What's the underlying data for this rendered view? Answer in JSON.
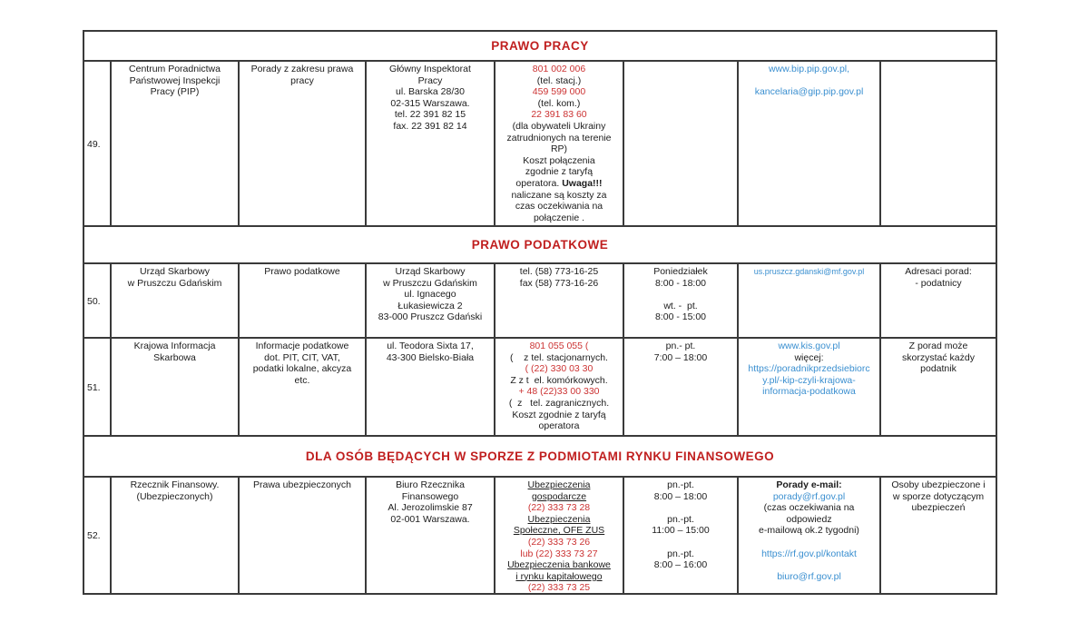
{
  "colors": {
    "section_header_red": "#c01f1f",
    "phone_red": "#cc3333",
    "link_blue": "#3a8fd0",
    "border": "#3a3a3a"
  },
  "table": {
    "blocks": [
      {
        "type": "section",
        "label": "PRAWO PRACY"
      },
      {
        "type": "row",
        "no": "49.",
        "cells": [
          [
            "Centrum Poradnictwa",
            "Państwowej Inspekcji",
            "Pracy (PIP)"
          ],
          [
            "Porady z zakresu prawa",
            "pracy"
          ],
          [
            "Główny Inspektorat",
            "Pracy",
            "ul. Barska 28/30",
            "02-315 Warszawa.",
            "tel. 22 391 82 15",
            "fax. 22 391 82 14"
          ],
          [
            {
              "t": "801 002 006",
              "s": "red"
            },
            "(tel. stacj.)",
            {
              "t": "459 599 000",
              "s": "red"
            },
            "(tel. kom.)",
            {
              "t": "22 391 83 60",
              "s": "red"
            },
            "(dla obywateli Ukrainy",
            "zatrudnionych na terenie",
            "RP)",
            "Koszt połączenia",
            "zgodnie z taryfą",
            {
              "parts": [
                {
                  "t": "operatora. "
                },
                {
                  "t": "Uwaga!!!",
                  "s": "bold"
                }
              ]
            },
            "naliczane są koszty za",
            "czas oczekiwania na",
            "połączenie ."
          ],
          [],
          [
            {
              "t": "www.bip.pip.gov.pl,",
              "s": "blue"
            },
            "",
            {
              "t": "kancelaria@gip.pip.gov.pl",
              "s": "blue"
            }
          ],
          []
        ]
      },
      {
        "type": "section",
        "label": "PRAWO PODATKOWE"
      },
      {
        "type": "row",
        "no": "50.",
        "cells": [
          [
            "Urząd Skarbowy",
            "w Pruszczu Gdańskim"
          ],
          [
            "Prawo podatkowe"
          ],
          [
            "Urząd Skarbowy",
            "w Pruszczu Gdańskim",
            "ul. Ignacego",
            "Łukasiewicza 2",
            "83-000 Pruszcz Gdański"
          ],
          [
            "tel. (58) 773-16-25",
            "fax (58) 773-16-26"
          ],
          [
            "Poniedziałek",
            "8:00 - 18:00",
            "",
            "wt. -  pt.",
            "8:00 - 15:00"
          ],
          [
            {
              "t": "us.pruszcz.gdanski@mf.gov.pl",
              "s": "blue small"
            }
          ],
          [
            "Adresaci porad:",
            "- podatnicy"
          ]
        ]
      },
      {
        "type": "row",
        "no": "51.",
        "cells": [
          [
            "Krajowa Informacja",
            "Skarbowa"
          ],
          [
            "Informacje podatkowe",
            "dot. PIT, CIT, VAT,",
            "podatki lokalne, akcyza",
            "etc."
          ],
          [
            "ul. Teodora Sixta 17,",
            "43-300 Bielsko-Biała"
          ],
          [
            {
              "t": "801 055 055 (",
              "s": "red"
            },
            "(    z tel. stacjonarnych.",
            {
              "t": "( (22) 330 03 30",
              "s": "red"
            },
            "Z z t  el. komórkowych.",
            {
              "t": "+ 48 (22)33 00 330",
              "s": "red"
            },
            "(  z   tel. zagranicznych.",
            "Koszt zgodnie z taryfą",
            "operatora"
          ],
          [
            "pn.- pt.",
            "7:00 – 18:00"
          ],
          [
            {
              "t": "www.kis.gov.pl",
              "s": "blue"
            },
            "więcej:",
            {
              "t": "https://poradnikprzedsiebiorc",
              "s": "blue"
            },
            {
              "t": "y.pl/-kip-czyli-krajowa-",
              "s": "blue"
            },
            {
              "t": "informacja-podatkowa",
              "s": "blue"
            }
          ],
          [
            "Z porad może",
            "skorzystać każdy",
            "podatnik"
          ]
        ]
      },
      {
        "type": "section",
        "label": "DLA OSÓB BĘDĄCYCH W SPORZE Z PODMIOTAMI RYNKU FINANSOWEGO"
      },
      {
        "type": "row",
        "no": "52.",
        "cells": [
          [
            "Rzecznik Finansowy.",
            "(Ubezpieczonych)"
          ],
          [
            "Prawa ubezpieczonych"
          ],
          [
            "Biuro Rzecznika",
            "Finansowego",
            "Al. Jerozolimskie 87",
            "02-001 Warszawa."
          ],
          [
            {
              "t": "Ubezpieczenia",
              "s": "u"
            },
            {
              "t": "gospodarcze",
              "s": "u"
            },
            {
              "t": "(22) 333 73 28",
              "s": "red"
            },
            {
              "t": "Ubezpieczenia",
              "s": "u"
            },
            {
              "t": "Społeczne, OFE ZUS",
              "s": "u"
            },
            {
              "t": "(22) 333 73 26",
              "s": "red"
            },
            {
              "t": "lub (22) 333 73 27",
              "s": "red"
            },
            {
              "t": "Ubezpieczenia bankowe",
              "s": "u"
            },
            {
              "t": "i rynku kapitałowego",
              "s": "u"
            },
            {
              "t": "(22) 333 73 25",
              "s": "red"
            }
          ],
          [
            "pn.-pt.",
            "8:00 – 18:00",
            "",
            "pn.-pt.",
            "11:00 – 15:00",
            "",
            "pn.-pt.",
            "8:00 – 16:00"
          ],
          [
            {
              "t": "Porady e-mail:",
              "s": "bold"
            },
            {
              "t": "porady@rf.gov.pl",
              "s": "blue"
            },
            "(czas oczekiwania na",
            "odpowiedz",
            "e-mailową ok.2 tygodni)",
            "",
            {
              "t": "https://rf.gov.pl/kontakt",
              "s": "blue"
            },
            "",
            {
              "t": "biuro@rf.gov.pl",
              "s": "blue"
            }
          ],
          [
            "Osoby ubezpieczone i",
            "w sporze dotyczącym",
            "ubezpieczeń"
          ]
        ]
      }
    ]
  }
}
